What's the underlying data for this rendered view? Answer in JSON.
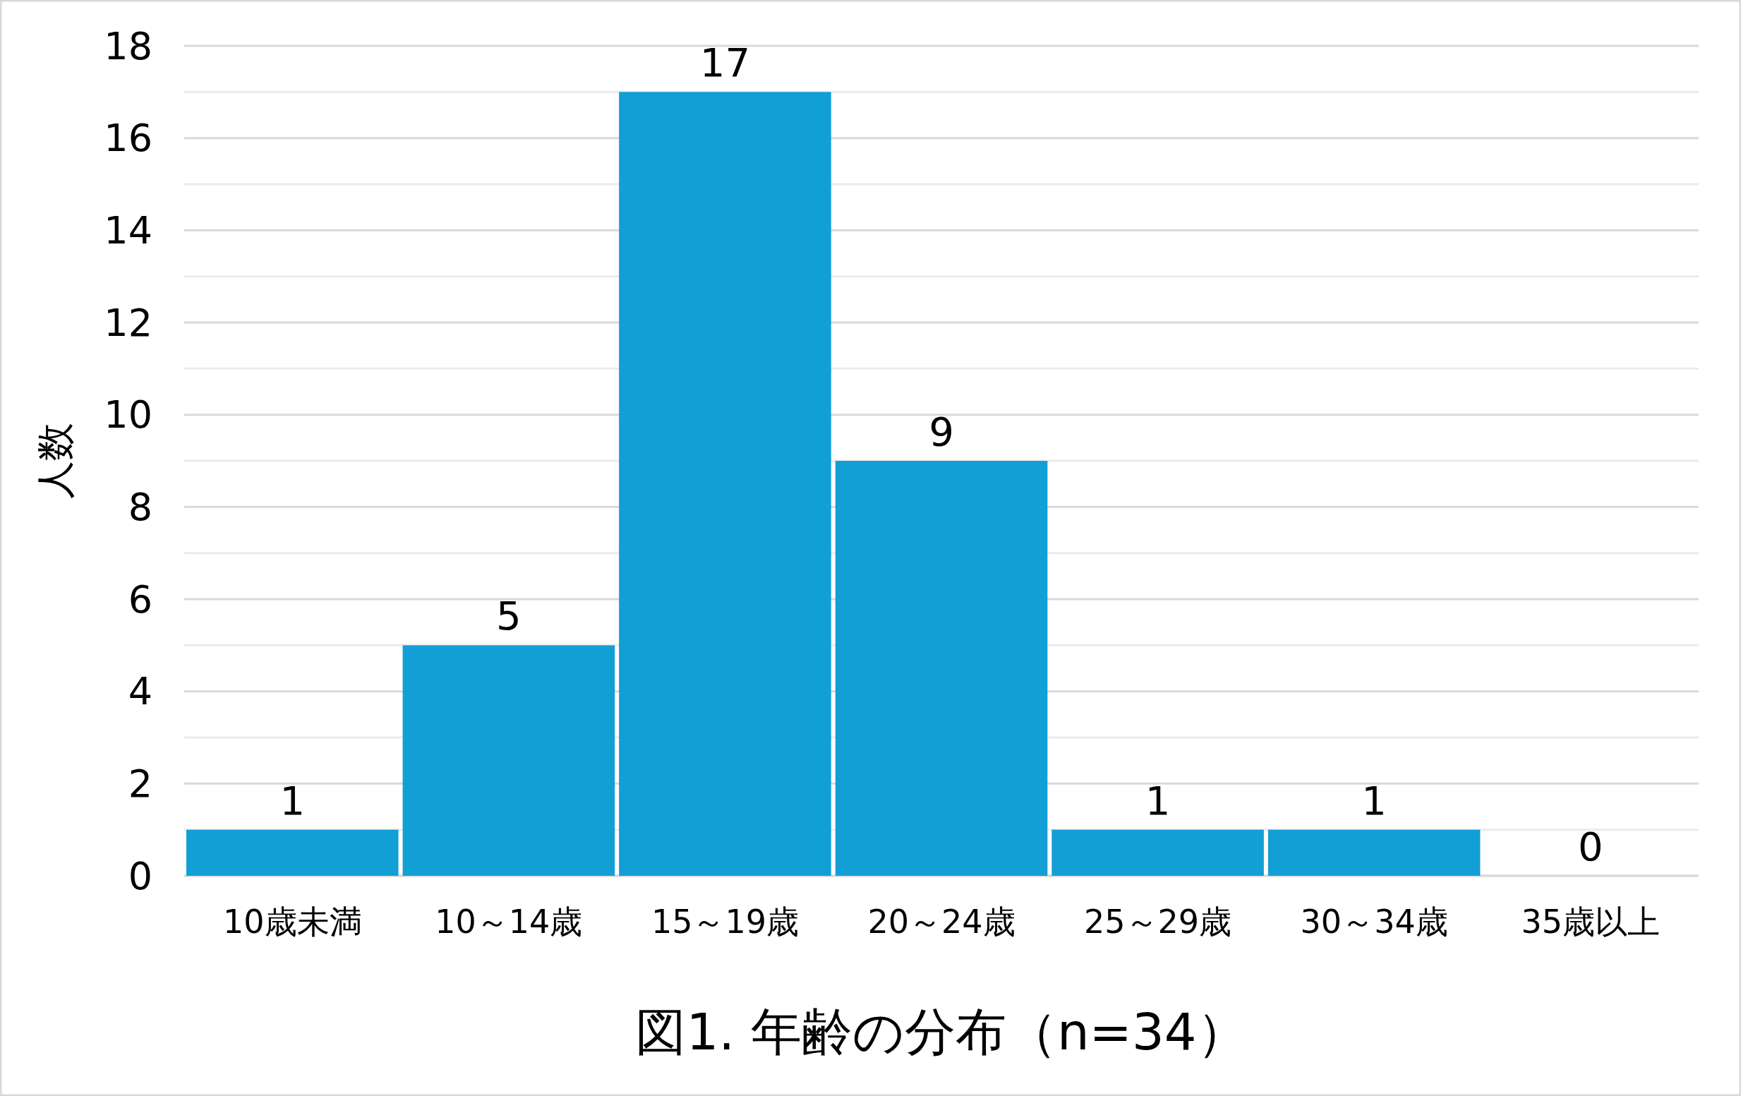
{
  "chart_data": {
    "type": "bar",
    "title": "図1. 年齢の分布（n=34）",
    "ylabel": "人数",
    "categories": [
      "10歳未満",
      "10～14歳",
      "15～19歳",
      "20～24歳",
      "25～29歳",
      "30～34歳",
      "35歳以上"
    ],
    "values": [
      1,
      5,
      17,
      9,
      1,
      1,
      0
    ],
    "color": "#129fd6",
    "ylim": [
      0,
      18
    ],
    "yticks": [
      0,
      {
        "value": 1,
        "label": null
      },
      2,
      {
        "value": 3,
        "label": null
      },
      4,
      {
        "value": 5,
        "label": null
      },
      6,
      {
        "value": 7,
        "label": null
      },
      8,
      {
        "value": 9,
        "label": null
      },
      10,
      {
        "value": 11,
        "label": null
      },
      12,
      {
        "value": 13,
        "label": null
      },
      14,
      {
        "value": 15,
        "label": null
      },
      16,
      {
        "value": 17,
        "label": null
      },
      18
    ],
    "grid": true,
    "data_labels": true
  }
}
